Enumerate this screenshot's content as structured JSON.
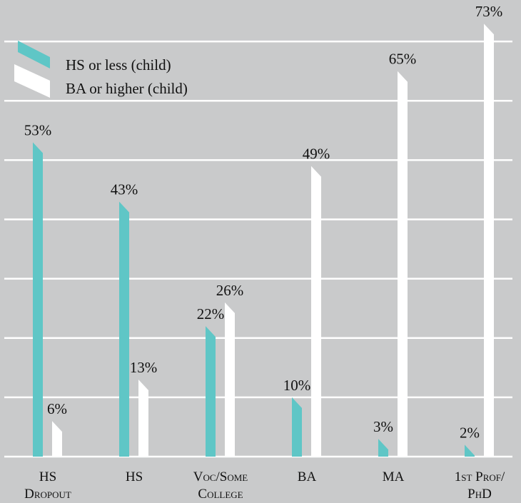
{
  "chart_data": {
    "type": "bar",
    "categories": [
      [
        "HS",
        "Dropout"
      ],
      [
        "HS"
      ],
      [
        "Voc/Some",
        "College"
      ],
      [
        "BA"
      ],
      [
        "MA"
      ],
      [
        "1st Prof/",
        "PhD"
      ]
    ],
    "series": [
      {
        "name": "HS or less (child)",
        "color": "#5fc6c6",
        "values": [
          53,
          43,
          22,
          10,
          3,
          2
        ],
        "value_labels": [
          "53%",
          "43%",
          "22%",
          "10%",
          "3%",
          "2%"
        ]
      },
      {
        "name": "BA or higher (child)",
        "color": "#ffffff",
        "values": [
          6,
          13,
          26,
          49,
          65,
          73
        ],
        "value_labels": [
          "6%",
          "13%",
          "26%",
          "49%",
          "65%",
          "73%"
        ]
      }
    ],
    "ylim": [
      0,
      77
    ],
    "yticks": [
      0,
      10,
      20,
      30,
      40,
      50,
      60,
      70
    ],
    "grid": true,
    "legend": "top-left"
  }
}
